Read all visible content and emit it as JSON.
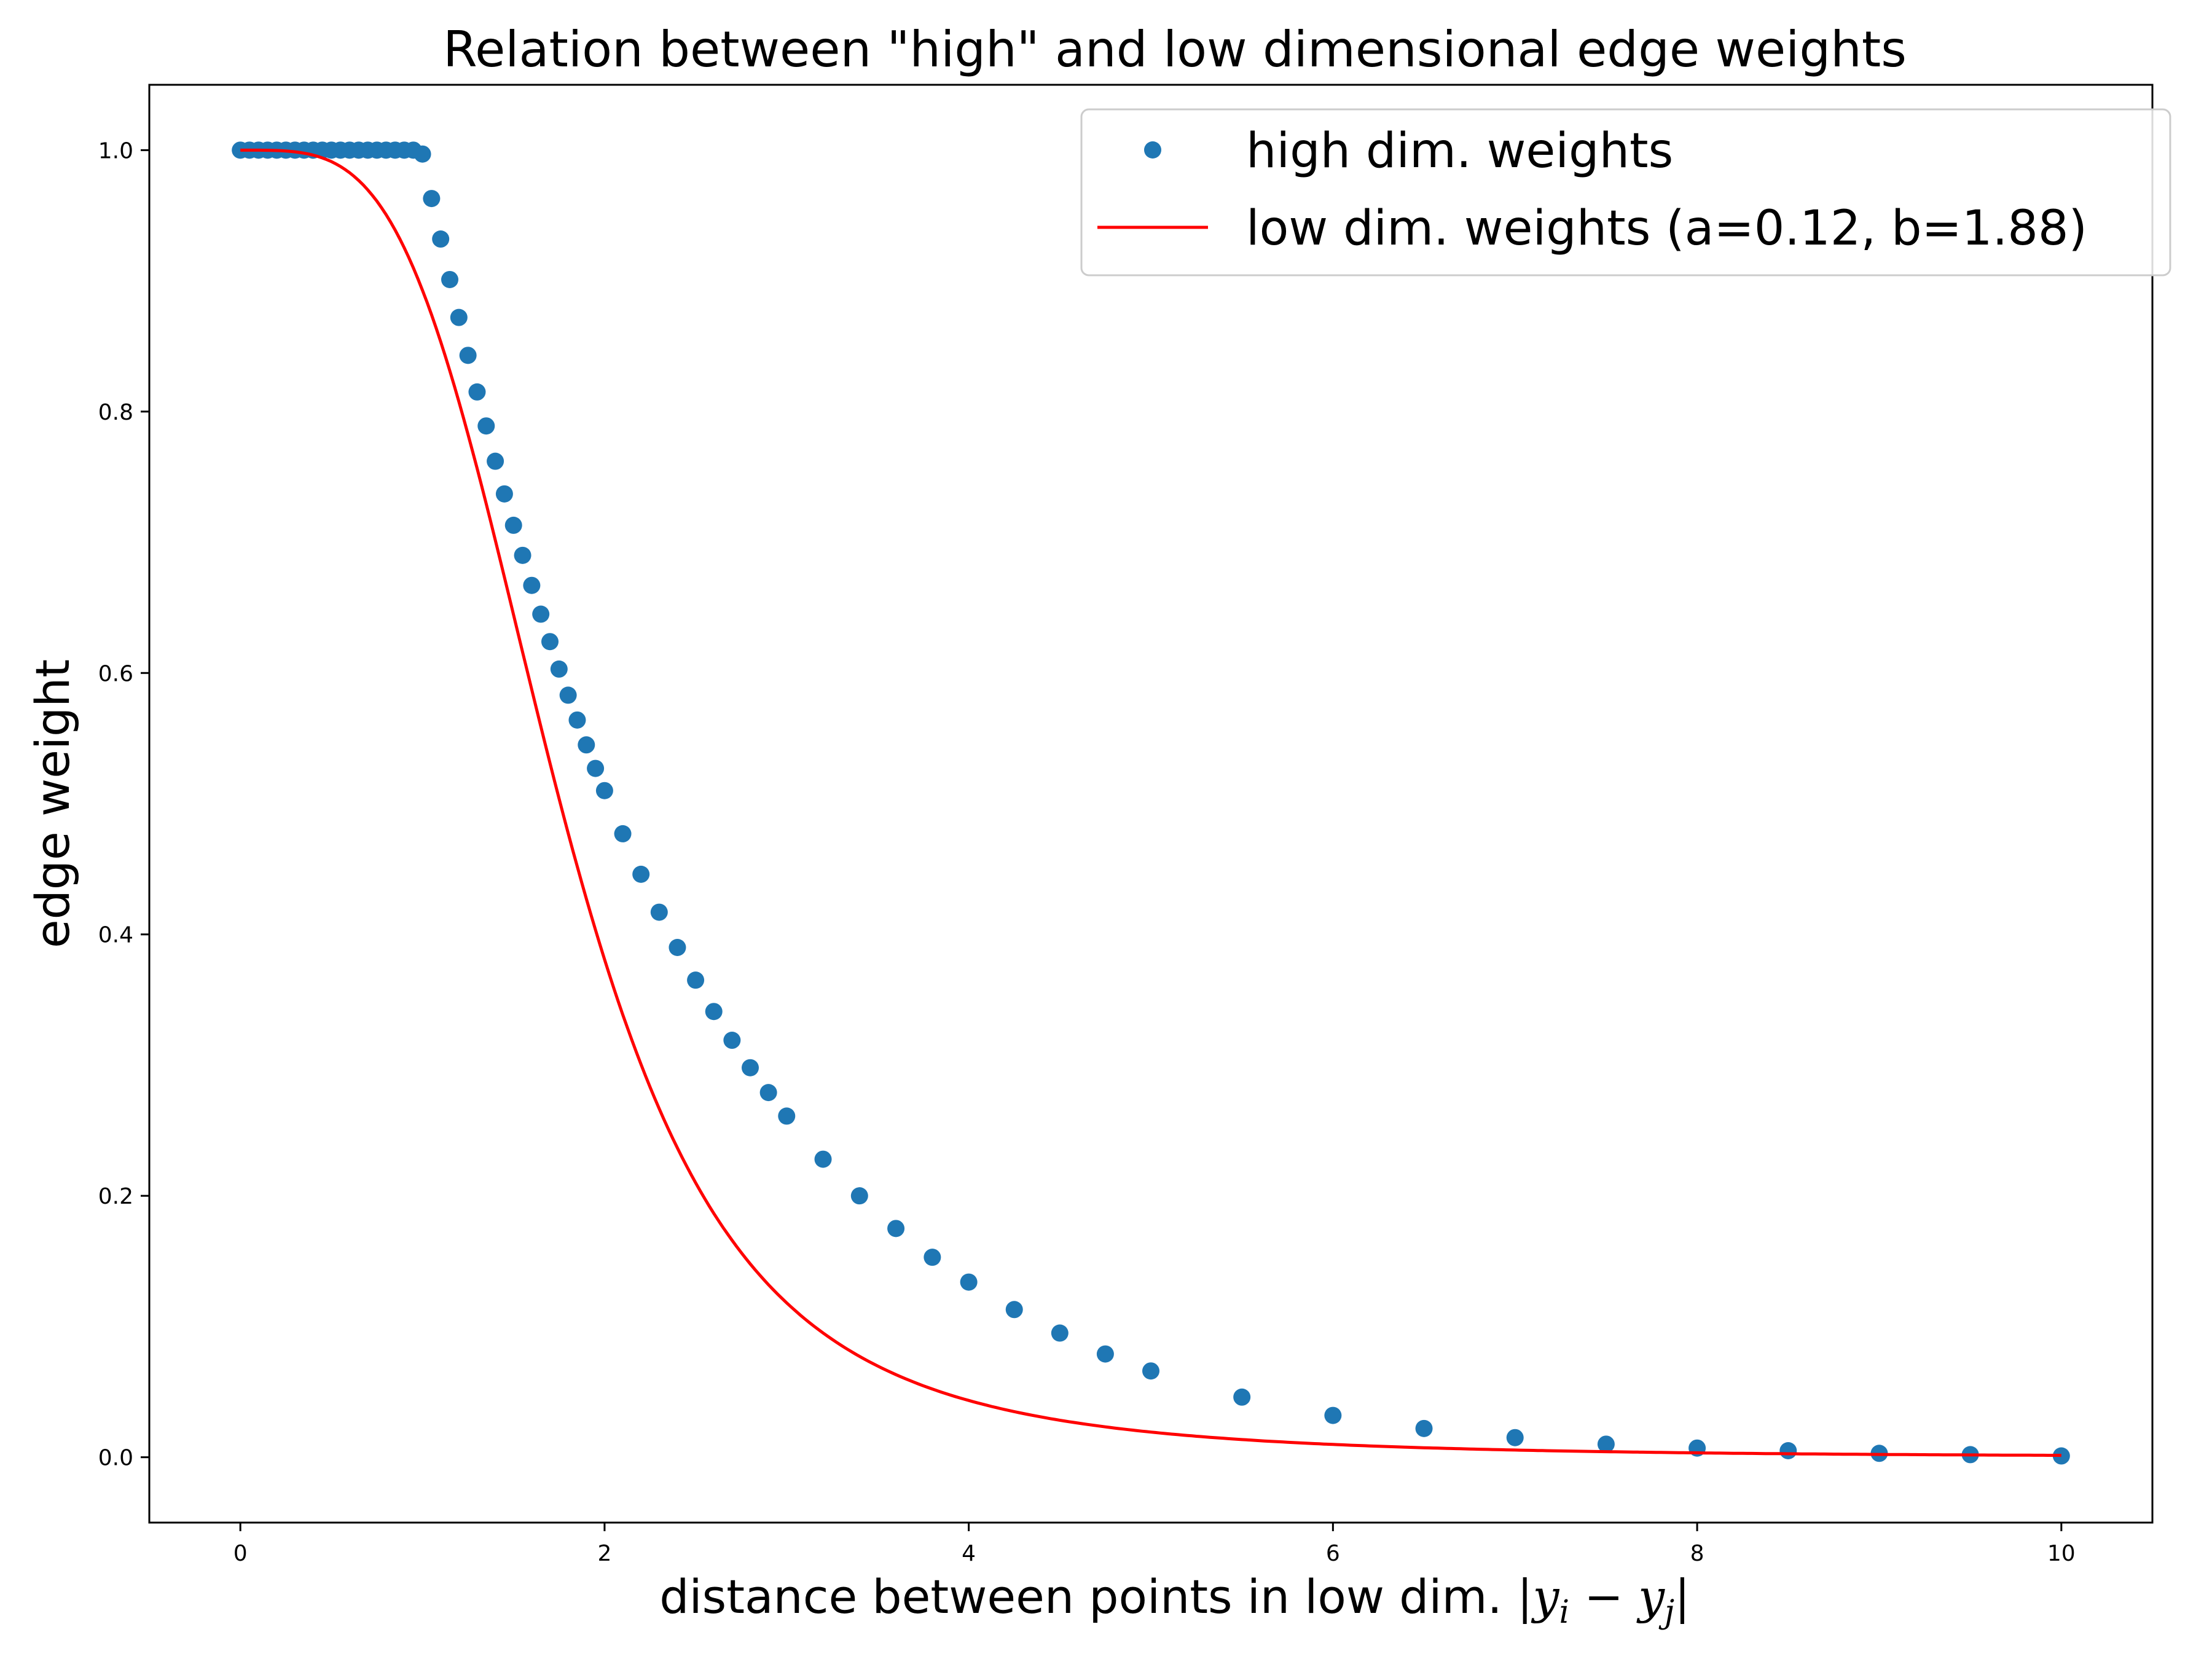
{
  "chart_data": {
    "type": "scatter",
    "title": "Relation between \"high\" and low dimensional edge weights",
    "xlabel_text": "distance between points in low dim.",
    "ylabel": "edge weight",
    "xlim": [
      -0.5,
      10.5
    ],
    "ylim": [
      -0.05,
      1.05
    ],
    "x_ticks": [
      0,
      2,
      4,
      6,
      8,
      10
    ],
    "x_tick_labels": [
      "0",
      "2",
      "4",
      "6",
      "8",
      "10"
    ],
    "y_ticks": [
      0.0,
      0.2,
      0.4,
      0.6,
      0.8,
      1.0
    ],
    "y_tick_labels": [
      "0.0",
      "0.2",
      "0.4",
      "0.6",
      "0.8",
      "1.0"
    ],
    "grid": false,
    "legend_position": "top-right",
    "series": [
      {
        "name": "high dim. weights",
        "kind": "scatter",
        "color": "#1f77b4",
        "x": [
          0.0,
          0.05,
          0.1,
          0.15,
          0.2,
          0.25,
          0.3,
          0.35,
          0.4,
          0.45,
          0.5,
          0.55,
          0.6,
          0.65,
          0.7,
          0.75,
          0.8,
          0.85,
          0.9,
          0.95,
          1.0,
          1.05,
          1.1,
          1.15,
          1.2,
          1.25,
          1.3,
          1.35,
          1.4,
          1.45,
          1.5,
          1.55,
          1.6,
          1.65,
          1.7,
          1.75,
          1.8,
          1.85,
          1.9,
          1.95,
          2.0,
          2.1,
          2.2,
          2.3,
          2.4,
          2.5,
          2.6,
          2.7,
          2.8,
          2.9,
          3.0,
          3.2,
          3.4,
          3.6,
          3.8,
          4.0,
          4.25,
          4.5,
          4.75,
          5.0,
          5.5,
          6.0,
          6.5,
          7.0,
          7.5,
          8.0,
          8.5,
          9.0,
          9.5,
          10.0
        ],
        "y": [
          1.0,
          1.0,
          1.0,
          1.0,
          1.0,
          1.0,
          1.0,
          1.0,
          1.0,
          1.0,
          1.0,
          1.0,
          1.0,
          1.0,
          1.0,
          1.0,
          1.0,
          1.0,
          1.0,
          1.0,
          0.997,
          0.963,
          0.932,
          0.901,
          0.872,
          0.843,
          0.815,
          0.789,
          0.762,
          0.737,
          0.713,
          0.69,
          0.667,
          0.645,
          0.624,
          0.603,
          0.583,
          0.564,
          0.545,
          0.527,
          0.51,
          0.477,
          0.446,
          0.417,
          0.39,
          0.365,
          0.341,
          0.319,
          0.298,
          0.279,
          0.261,
          0.228,
          0.2,
          0.175,
          0.153,
          0.134,
          0.113,
          0.095,
          0.079,
          0.066,
          0.046,
          0.032,
          0.022,
          0.015,
          0.01,
          0.007,
          0.005,
          0.003,
          0.002,
          0.001
        ]
      },
      {
        "name": "low dim. weights (a=0.12, b=1.88)",
        "kind": "line",
        "color": "#ff0000",
        "a": 0.12,
        "b": 1.88
      }
    ]
  }
}
